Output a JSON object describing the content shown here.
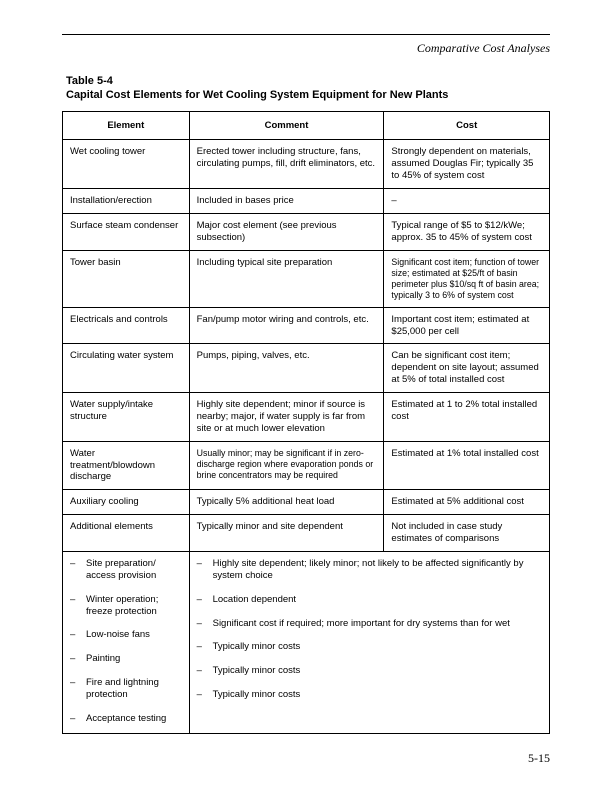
{
  "running_head": "Comparative Cost Analyses",
  "caption_line1": "Table 5-4",
  "caption_line2": "Capital Cost Elements for Wet Cooling System Equipment for New Plants",
  "headers": {
    "element": "Element",
    "comment": "Comment",
    "cost": "Cost"
  },
  "rows": [
    {
      "element": "Wet cooling tower",
      "comment": "Erected tower including structure, fans, circulating pumps, fill, drift eliminators, etc.",
      "cost": "Strongly dependent on materials, assumed Douglas Fir; typically 35 to 45% of system cost"
    },
    {
      "element": "Installation/erection",
      "comment": "Included in bases price",
      "cost": "–"
    },
    {
      "element": "Surface steam condenser",
      "comment": "Major cost element (see previous subsection)",
      "cost": "Typical range of $5 to $12/kWe; approx. 35 to 45% of system cost"
    },
    {
      "element": "Tower basin",
      "comment": "Including typical site preparation",
      "cost": "Significant cost item; function of tower size; estimated at $25/ft of basin perimeter plus $10/sq ft of basin area; typically 3 to 6% of system cost",
      "cost_small": true
    },
    {
      "element": "Electricals and controls",
      "comment": "Fan/pump motor wiring and controls, etc.",
      "cost": "Important cost item; estimated at $25,000 per cell"
    },
    {
      "element": "Circulating water system",
      "comment": "Pumps, piping, valves, etc.",
      "cost": "Can be significant cost item; dependent on site layout; assumed at 5% of total installed cost"
    },
    {
      "element": "Water supply/intake structure",
      "comment": "Highly site dependent; minor if source is nearby; major, if water supply is far from site or at much lower elevation",
      "cost": "Estimated at 1 to 2% total installed cost"
    },
    {
      "element": "Water treatment/blowdown discharge",
      "comment": "Usually minor; may be significant if in zero-discharge region where evaporation ponds or brine concentrators may be required",
      "comment_small": true,
      "cost": "Estimated at 1% total installed cost"
    },
    {
      "element": "Auxiliary cooling",
      "comment": "Typically 5% additional heat load",
      "cost": "Estimated at 5% additional cost"
    },
    {
      "element": "Additional elements",
      "comment": "Typically minor and site dependent",
      "cost": "Not included in case study estimates of comparisons"
    }
  ],
  "sub_elements": [
    "Site preparation/ access provision",
    "Winter operation; freeze protection",
    "Low-noise fans",
    "Painting",
    "Fire and lightning protection",
    "Acceptance testing"
  ],
  "sub_comments": [
    "Highly site dependent; likely minor; not likely to be affected significantly by system choice",
    "Location dependent",
    "Significant cost if required; more important for dry systems than for wet",
    "Typically minor costs",
    "Typically minor costs",
    "Typically minor costs"
  ],
  "page_number": "5-15",
  "dash": "–"
}
